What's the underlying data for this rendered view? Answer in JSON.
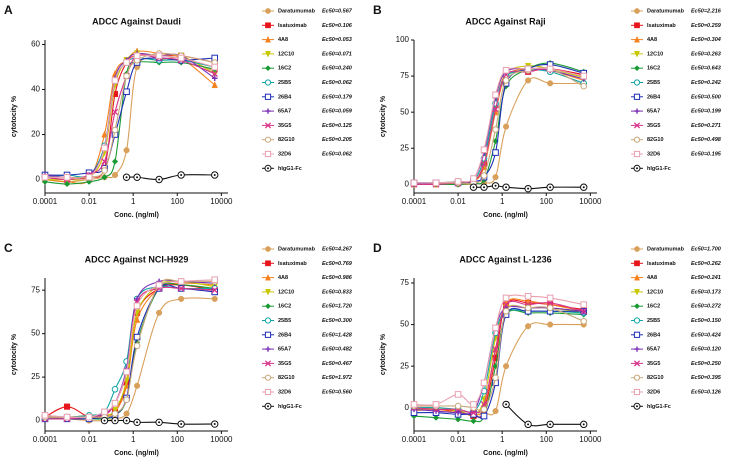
{
  "chart_data": [
    {
      "type": "line",
      "panel": "A",
      "title": "ADCC Against Daudi",
      "xlabel": "Conc. (ng/ml)",
      "ylabel": "cytotocity %",
      "log_x": true,
      "xlim": [
        0.0001,
        20000
      ],
      "xticks": [
        0.0001,
        0.01,
        1,
        100,
        10000
      ],
      "ylim": [
        -6,
        62
      ],
      "yticks": [
        0,
        20,
        40,
        60
      ],
      "x": [
        0.0001,
        0.001,
        0.01,
        0.05,
        0.15,
        0.5,
        1.5,
        15,
        150,
        5000
      ],
      "series": [
        {
          "name": "Daratumumab",
          "ec50": "Ec50=0.567",
          "color": "#d9a05b",
          "marker": "circle",
          "values": [
            0,
            -1,
            0,
            1,
            2,
            13,
            50,
            53,
            54,
            48
          ]
        },
        {
          "name": "Isatuximab",
          "ec50": "Ec50=0.106",
          "color": "#e8141b",
          "marker": "square",
          "values": [
            1,
            0,
            1,
            5,
            38,
            52,
            55,
            55,
            55,
            52
          ]
        },
        {
          "name": "4A8",
          "ec50": "Ec50=0.053",
          "color": "#f5821f",
          "marker": "triangle",
          "values": [
            0,
            -1,
            0,
            20,
            47,
            53,
            57,
            56,
            54,
            42
          ]
        },
        {
          "name": "12C10",
          "ec50": "Ec50=0.071",
          "color": "#c8c800",
          "marker": "triangle-down",
          "values": [
            0,
            0,
            1,
            12,
            42,
            53,
            56,
            55,
            55,
            47
          ]
        },
        {
          "name": "16C2",
          "ec50": "Ec50=0.240",
          "color": "#1a9a33",
          "marker": "diamond",
          "values": [
            -1,
            -2,
            -1,
            1,
            8,
            47,
            52,
            52,
            52,
            49
          ]
        },
        {
          "name": "25B5",
          "ec50": "Ec50=0.062",
          "color": "#12a5a5",
          "marker": "circle-open",
          "values": [
            1,
            2,
            2,
            15,
            44,
            52,
            54,
            53,
            53,
            50
          ]
        },
        {
          "name": "26B4",
          "ec50": "Ec50=0.179",
          "color": "#1f2fb5",
          "marker": "square-open",
          "values": [
            2,
            2,
            3,
            5,
            20,
            39,
            52,
            54,
            53,
            54
          ]
        },
        {
          "name": "65A7",
          "ec50": "Ec50=0.059",
          "color": "#7b2fb5",
          "marker": "plus",
          "values": [
            2,
            1,
            2,
            14,
            45,
            53,
            56,
            55,
            55,
            45
          ]
        },
        {
          "name": "35G5",
          "ec50": "Ec50=0.125",
          "color": "#d6338a",
          "marker": "x",
          "values": [
            1,
            0,
            2,
            8,
            30,
            46,
            55,
            54,
            53,
            47
          ]
        },
        {
          "name": "82G10",
          "ec50": "Ec50=0.205",
          "color": "#c8a87a",
          "marker": "circle-open",
          "values": [
            1,
            1,
            1,
            4,
            22,
            46,
            53,
            56,
            55,
            52
          ]
        },
        {
          "name": "32D6",
          "ec50": "Ec50=0.062",
          "color": "#e8a0b0",
          "marker": "square-open",
          "values": [
            1,
            1,
            1,
            14,
            44,
            52,
            55,
            55,
            54,
            50
          ]
        },
        {
          "name": "hIgG1-Fc",
          "color": "#111111",
          "marker": "circle-dot",
          "values": [
            null,
            null,
            null,
            null,
            null,
            1,
            1,
            0,
            2,
            2
          ]
        }
      ]
    },
    {
      "type": "line",
      "panel": "B",
      "title": "ADCC Against Raji",
      "xlabel": "Conc. (ng/ml)",
      "ylabel": "cytotocity %",
      "log_x": true,
      "xlim": [
        0.0001,
        20000
      ],
      "xticks": [
        0.0001,
        0.01,
        1,
        100,
        10000
      ],
      "ylim": [
        -6,
        100
      ],
      "yticks": [
        0,
        25,
        50,
        75,
        100
      ],
      "x": [
        0.0001,
        0.001,
        0.01,
        0.05,
        0.15,
        0.5,
        1.5,
        15,
        150,
        5000
      ],
      "series": [
        {
          "name": "Daratumumab",
          "ec50": "Ec50=2.216",
          "color": "#d9a05b",
          "marker": "circle",
          "values": [
            0,
            0,
            0,
            0,
            1,
            5,
            40,
            72,
            70,
            70
          ]
        },
        {
          "name": "Isatuximab",
          "ec50": "Ec50=0.259",
          "color": "#e8141b",
          "marker": "square",
          "values": [
            1,
            1,
            1,
            2,
            15,
            55,
            76,
            78,
            80,
            76
          ]
        },
        {
          "name": "4A8",
          "ec50": "Ec50=0.304",
          "color": "#f5821f",
          "marker": "triangle",
          "values": [
            0,
            0,
            1,
            2,
            12,
            50,
            75,
            80,
            79,
            72
          ]
        },
        {
          "name": "12C10",
          "ec50": "Ec50=0.263",
          "color": "#c8c800",
          "marker": "triangle-down",
          "values": [
            0,
            1,
            1,
            2,
            14,
            54,
            77,
            82,
            80,
            74
          ]
        },
        {
          "name": "16C2",
          "ec50": "Ec50=0.643",
          "color": "#1a9a33",
          "marker": "diamond",
          "values": [
            0,
            0,
            0,
            1,
            3,
            30,
            68,
            80,
            84,
            78
          ]
        },
        {
          "name": "25B5",
          "ec50": "Ec50=0.242",
          "color": "#12a5a5",
          "marker": "circle-open",
          "values": [
            1,
            1,
            2,
            3,
            18,
            56,
            75,
            79,
            78,
            70
          ]
        },
        {
          "name": "26B4",
          "ec50": "Ec50=0.500",
          "color": "#1f2fb5",
          "marker": "square-open",
          "values": [
            1,
            1,
            1,
            2,
            5,
            22,
            70,
            80,
            83,
            77
          ]
        },
        {
          "name": "65A7",
          "ec50": "Ec50=0.199",
          "color": "#7b2fb5",
          "marker": "plus",
          "values": [
            0,
            1,
            1,
            4,
            22,
            60,
            78,
            80,
            79,
            73
          ]
        },
        {
          "name": "35G5",
          "ec50": "Ec50=0.271",
          "color": "#d6338a",
          "marker": "x",
          "values": [
            0,
            0,
            1,
            2,
            14,
            52,
            76,
            78,
            80,
            75
          ]
        },
        {
          "name": "82G10",
          "ec50": "Ec50=0.498",
          "color": "#c8a87a",
          "marker": "circle-open",
          "values": [
            1,
            1,
            1,
            1,
            6,
            38,
            72,
            79,
            80,
            68
          ]
        },
        {
          "name": "32D6",
          "ec50": "Ec50=0.195",
          "color": "#e8a0b0",
          "marker": "square-open",
          "values": [
            1,
            1,
            2,
            4,
            24,
            62,
            79,
            80,
            80,
            75
          ]
        },
        {
          "name": "hIgG1-Fc",
          "color": "#111111",
          "marker": "circle-dot",
          "values": [
            null,
            null,
            null,
            -2,
            -2,
            -1,
            -2,
            -3,
            -2,
            -2
          ]
        }
      ]
    },
    {
      "type": "line",
      "panel": "C",
      "title": "ADCC Against NCI-H929",
      "xlabel": "Conc. (ng/ml)",
      "ylabel": "cytotocity %",
      "log_x": true,
      "xlim": [
        0.0001,
        20000
      ],
      "xticks": [
        0.0001,
        0.01,
        1,
        100,
        10000
      ],
      "ylim": [
        -6,
        82
      ],
      "yticks": [
        0,
        25,
        50,
        75
      ],
      "x": [
        0.0001,
        0.001,
        0.01,
        0.05,
        0.15,
        0.5,
        1.5,
        15,
        150,
        5000
      ],
      "series": [
        {
          "name": "Daratumumab",
          "ec50": "Ec50=4.267",
          "color": "#d9a05b",
          "marker": "circle",
          "values": [
            2,
            1,
            0,
            0,
            1,
            4,
            20,
            62,
            70,
            70
          ]
        },
        {
          "name": "Isatuximab",
          "ec50": "Ec50=0.769",
          "color": "#e8141b",
          "marker": "square",
          "values": [
            2,
            8,
            2,
            2,
            5,
            22,
            62,
            76,
            78,
            75
          ]
        },
        {
          "name": "4A8",
          "ec50": "Ec50=0.986",
          "color": "#f5821f",
          "marker": "triangle",
          "values": [
            3,
            2,
            3,
            3,
            5,
            20,
            58,
            76,
            79,
            78
          ]
        },
        {
          "name": "12C10",
          "ec50": "Ec50=0.833",
          "color": "#c8c800",
          "marker": "triangle-down",
          "values": [
            2,
            2,
            2,
            3,
            6,
            23,
            62,
            78,
            80,
            77
          ]
        },
        {
          "name": "16C2",
          "ec50": "Ec50=1.720",
          "color": "#1a9a33",
          "marker": "diamond",
          "values": [
            1,
            1,
            1,
            1,
            3,
            12,
            45,
            76,
            78,
            76
          ]
        },
        {
          "name": "25B5",
          "ec50": "Ec50=0.300",
          "color": "#12a5a5",
          "marker": "circle-open",
          "values": [
            3,
            2,
            3,
            5,
            18,
            34,
            70,
            77,
            76,
            76
          ]
        },
        {
          "name": "26B4",
          "ec50": "Ec50=1.428",
          "color": "#1f2fb5",
          "marker": "square-open",
          "values": [
            1,
            1,
            1,
            2,
            3,
            13,
            48,
            76,
            76,
            74
          ]
        },
        {
          "name": "65A7",
          "ec50": "Ec50=0.482",
          "color": "#7b2fb5",
          "marker": "plus",
          "values": [
            2,
            2,
            2,
            4,
            10,
            30,
            70,
            80,
            80,
            79
          ]
        },
        {
          "name": "35G5",
          "ec50": "Ec50=0.467",
          "color": "#d6338a",
          "marker": "x",
          "values": [
            1,
            1,
            2,
            3,
            10,
            28,
            68,
            76,
            76,
            75
          ]
        },
        {
          "name": "82G10",
          "ec50": "Ec50=1.972",
          "color": "#c8a87a",
          "marker": "circle-open",
          "values": [
            2,
            2,
            2,
            2,
            4,
            12,
            43,
            78,
            80,
            80
          ]
        },
        {
          "name": "32D6",
          "ec50": "Ec50=0.560",
          "color": "#e8a0b0",
          "marker": "square-open",
          "values": [
            3,
            2,
            2,
            5,
            10,
            28,
            66,
            78,
            80,
            81
          ]
        },
        {
          "name": "hIgG1-Fc",
          "color": "#111111",
          "marker": "circle-dot",
          "values": [
            null,
            null,
            null,
            0,
            0,
            0,
            -1,
            -1,
            -2,
            -2
          ]
        }
      ]
    },
    {
      "type": "line",
      "panel": "D",
      "title": "ADCC Against L-1236",
      "xlabel": "Conc. (ng/ml)",
      "ylabel": "cytotocity %",
      "log_x": true,
      "xlim": [
        0.0001,
        20000
      ],
      "xticks": [
        0.0001,
        0.01,
        1,
        100,
        10000
      ],
      "ylim": [
        -14,
        78
      ],
      "yticks": [
        0,
        25,
        50,
        75
      ],
      "x": [
        0.0001,
        0.001,
        0.01,
        0.05,
        0.15,
        0.5,
        1.5,
        15,
        150,
        5000
      ],
      "series": [
        {
          "name": "Daratumumab",
          "ec50": "Ec50=1.700",
          "color": "#d9a05b",
          "marker": "circle",
          "values": [
            -2,
            -1,
            -2,
            -3,
            -3,
            -2,
            25,
            49,
            50,
            50
          ]
        },
        {
          "name": "Isatuximab",
          "ec50": "Ec50=0.262",
          "color": "#e8141b",
          "marker": "square",
          "values": [
            0,
            -1,
            -2,
            -5,
            -2,
            30,
            62,
            63,
            62,
            59
          ]
        },
        {
          "name": "4A8",
          "ec50": "Ec50=0.241",
          "color": "#f5821f",
          "marker": "triangle",
          "values": [
            -1,
            -1,
            -3,
            -4,
            0,
            35,
            63,
            64,
            62,
            58
          ]
        },
        {
          "name": "12C10",
          "ec50": "Ec50=0.173",
          "color": "#c8c800",
          "marker": "triangle-down",
          "values": [
            -1,
            0,
            -2,
            -4,
            5,
            42,
            60,
            60,
            60,
            57
          ]
        },
        {
          "name": "16C2",
          "ec50": "Ec50=0.272",
          "color": "#1a9a33",
          "marker": "diamond",
          "values": [
            -5,
            -6,
            -7,
            -8,
            -5,
            25,
            56,
            57,
            57,
            56
          ]
        },
        {
          "name": "25B5",
          "ec50": "Ec50=0.150",
          "color": "#12a5a5",
          "marker": "circle-open",
          "values": [
            0,
            0,
            -1,
            -2,
            10,
            45,
            58,
            58,
            58,
            57
          ]
        },
        {
          "name": "26B4",
          "ec50": "Ec50=0.424",
          "color": "#1f2fb5",
          "marker": "square-open",
          "values": [
            -3,
            -3,
            -4,
            -4,
            -5,
            15,
            56,
            58,
            58,
            58
          ]
        },
        {
          "name": "65A7",
          "ec50": "Ec50=0.120",
          "color": "#7b2fb5",
          "marker": "plus",
          "values": [
            -1,
            -2,
            -3,
            -2,
            15,
            48,
            60,
            60,
            60,
            58
          ]
        },
        {
          "name": "35G5",
          "ec50": "Ec50=0.250",
          "color": "#d6338a",
          "marker": "x",
          "values": [
            0,
            -1,
            -1,
            -3,
            2,
            35,
            62,
            62,
            63,
            58
          ]
        },
        {
          "name": "82G10",
          "ec50": "Ec50=0.395",
          "color": "#c8a87a",
          "marker": "circle-open",
          "values": [
            1,
            1,
            1,
            0,
            -1,
            18,
            58,
            60,
            60,
            52
          ]
        },
        {
          "name": "32D6",
          "ec50": "Ec50=0.126",
          "color": "#e8a0b0",
          "marker": "square-open",
          "values": [
            2,
            2,
            8,
            2,
            15,
            48,
            66,
            67,
            66,
            62
          ]
        },
        {
          "name": "hIgG1-Fc",
          "color": "#111111",
          "marker": "circle-dot",
          "values": [
            null,
            null,
            null,
            null,
            null,
            null,
            2,
            -10,
            -10,
            -10
          ]
        }
      ]
    }
  ]
}
